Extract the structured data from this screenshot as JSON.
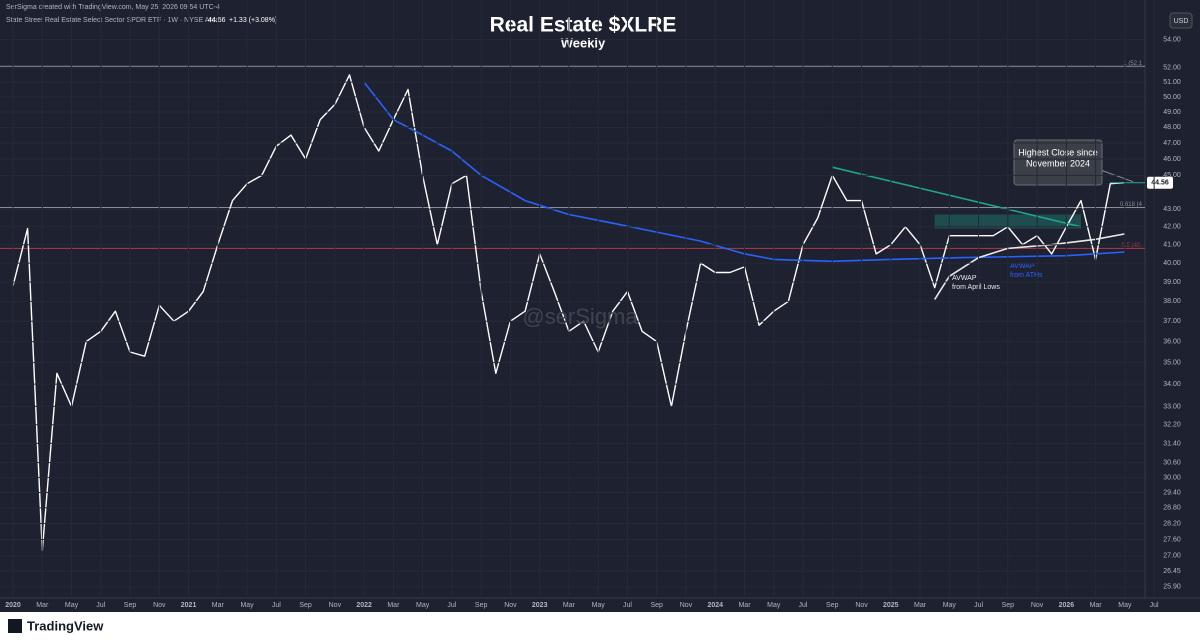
{
  "chart_data": {
    "type": "line",
    "header": {
      "credit": "SerSigma created with TradingView.com, May 25, 2026 09:54 UTC-4",
      "symbol": "State Street Real Estate Select Sector SPDR ETF · 1W · NYSE Arca",
      "change": "+1.33 (+3.08%)"
    },
    "title": "Real Estate $XLRE",
    "subtitle": "Weekly",
    "currency": "USD",
    "watermark": "@serSigma",
    "brand": "TradingView",
    "log_scale": true,
    "grid": true,
    "ylim": [
      25.55,
      54.7
    ],
    "yticks": [
      {
        "value": 54,
        "label": "54.00"
      },
      {
        "value": 52,
        "label": "52.00"
      },
      {
        "value": 51,
        "label": "51.00"
      },
      {
        "value": 50,
        "label": "50.00"
      },
      {
        "value": 49,
        "label": "49.00"
      },
      {
        "value": 48,
        "label": "48.00"
      },
      {
        "value": 47,
        "label": "47.00"
      },
      {
        "value": 46,
        "label": "46.00"
      },
      {
        "value": 45,
        "label": "45.00"
      },
      {
        "value": 43,
        "label": "43.00"
      },
      {
        "value": 42,
        "label": "42.00"
      },
      {
        "value": 41,
        "label": "41.00"
      },
      {
        "value": 40,
        "label": "40.00"
      },
      {
        "value": 39,
        "label": "39.00"
      },
      {
        "value": 38,
        "label": "38.00"
      },
      {
        "value": 37,
        "label": "37.00"
      },
      {
        "value": 36,
        "label": "36.00"
      },
      {
        "value": 35,
        "label": "35.00"
      },
      {
        "value": 34,
        "label": "34.00"
      },
      {
        "value": 33,
        "label": "33.00"
      },
      {
        "value": 32.2,
        "label": "32.20"
      },
      {
        "value": 31.4,
        "label": "31.40"
      },
      {
        "value": 30.6,
        "label": "30.60"
      },
      {
        "value": 30,
        "label": "30.00"
      },
      {
        "value": 29.4,
        "label": "29.40"
      },
      {
        "value": 28.8,
        "label": "28.80"
      },
      {
        "value": 28.2,
        "label": "28.20"
      },
      {
        "value": 27.6,
        "label": "27.60"
      },
      {
        "value": 27,
        "label": "27.00"
      },
      {
        "value": 26.45,
        "label": "26.45"
      },
      {
        "value": 25.9,
        "label": "25.90"
      }
    ],
    "xticks": [
      {
        "value": "2020-01",
        "label": "2020"
      },
      {
        "value": "2020-03",
        "label": "Mar"
      },
      {
        "value": "2020-05",
        "label": "May"
      },
      {
        "value": "2020-07",
        "label": "Jul"
      },
      {
        "value": "2020-09",
        "label": "Sep"
      },
      {
        "value": "2020-11",
        "label": "Nov"
      },
      {
        "value": "2021-01",
        "label": "2021"
      },
      {
        "value": "2021-03",
        "label": "Mar"
      },
      {
        "value": "2021-05",
        "label": "May"
      },
      {
        "value": "2021-07",
        "label": "Jul"
      },
      {
        "value": "2021-09",
        "label": "Sep"
      },
      {
        "value": "2021-11",
        "label": "Nov"
      },
      {
        "value": "2022-01",
        "label": "2022"
      },
      {
        "value": "2022-03",
        "label": "Mar"
      },
      {
        "value": "2022-05",
        "label": "May"
      },
      {
        "value": "2022-07",
        "label": "Jul"
      },
      {
        "value": "2022-09",
        "label": "Sep"
      },
      {
        "value": "2022-11",
        "label": "Nov"
      },
      {
        "value": "2023-01",
        "label": "2023"
      },
      {
        "value": "2023-03",
        "label": "Mar"
      },
      {
        "value": "2023-05",
        "label": "May"
      },
      {
        "value": "2023-07",
        "label": "Jul"
      },
      {
        "value": "2023-09",
        "label": "Sep"
      },
      {
        "value": "2023-11",
        "label": "Nov"
      },
      {
        "value": "2024-01",
        "label": "2024"
      },
      {
        "value": "2024-03",
        "label": "Mar"
      },
      {
        "value": "2024-05",
        "label": "May"
      },
      {
        "value": "2024-07",
        "label": "Jul"
      },
      {
        "value": "2024-09",
        "label": "Sep"
      },
      {
        "value": "2024-11",
        "label": "Nov"
      },
      {
        "value": "2025-01",
        "label": "2025"
      },
      {
        "value": "2025-03",
        "label": "Mar"
      },
      {
        "value": "2025-05",
        "label": "May"
      },
      {
        "value": "2025-07",
        "label": "Jul"
      },
      {
        "value": "2025-09",
        "label": "Sep"
      },
      {
        "value": "2025-11",
        "label": "Nov"
      },
      {
        "value": "2026-01",
        "label": "2026"
      },
      {
        "value": "2026-03",
        "label": "Mar"
      },
      {
        "value": "2026-05",
        "label": "May"
      },
      {
        "value": "2026-07",
        "label": "Jul"
      }
    ],
    "last_price": {
      "value": 44.56,
      "label": "44.56"
    },
    "series": [
      {
        "color": "#ffffff",
        "x": [
          "2020-01",
          "2020-02",
          "2020-03",
          "2020-04",
          "2020-05",
          "2020-06",
          "2020-07",
          "2020-08",
          "2020-09",
          "2020-10",
          "2020-11",
          "2020-12",
          "2021-01",
          "2021-02",
          "2021-03",
          "2021-04",
          "2021-05",
          "2021-06",
          "2021-07",
          "2021-08",
          "2021-09",
          "2021-10",
          "2021-11",
          "2021-12",
          "2022-01",
          "2022-02",
          "2022-03",
          "2022-04",
          "2022-05",
          "2022-06",
          "2022-07",
          "2022-08",
          "2022-09",
          "2022-10",
          "2022-11",
          "2022-12",
          "2023-01",
          "2023-02",
          "2023-03",
          "2023-04",
          "2023-05",
          "2023-06",
          "2023-07",
          "2023-08",
          "2023-09",
          "2023-10",
          "2023-11",
          "2023-12",
          "2024-01",
          "2024-02",
          "2024-03",
          "2024-04",
          "2024-05",
          "2024-06",
          "2024-07",
          "2024-08",
          "2024-09",
          "2024-10",
          "2024-11",
          "2024-12",
          "2025-01",
          "2025-02",
          "2025-03",
          "2025-04",
          "2025-05",
          "2025-06",
          "2025-07",
          "2025-08",
          "2025-09",
          "2025-10",
          "2025-11",
          "2025-12",
          "2026-01",
          "2026-02",
          "2026-03",
          "2026-04",
          "2026-05"
        ],
        "values": [
          38.8,
          41.9,
          27.2,
          34.5,
          33,
          36,
          36.5,
          37.5,
          35.5,
          35.3,
          37.8,
          37,
          37.5,
          38.5,
          41,
          43.5,
          44.5,
          45,
          46.8,
          47.5,
          46,
          48.5,
          49.5,
          51.5,
          48,
          46.5,
          48.5,
          50.5,
          45,
          41,
          44.5,
          45,
          38.5,
          34.5,
          37,
          37.5,
          40.5,
          38.5,
          36.5,
          37,
          35.5,
          37.5,
          38.5,
          36.5,
          36,
          33,
          36.5,
          40,
          39.5,
          39.5,
          39.8,
          36.8,
          37.5,
          38,
          41,
          42.5,
          45,
          43.5,
          43.5,
          40.5,
          41,
          42,
          41,
          38.7,
          41.5,
          41.5,
          41.5,
          41.5,
          42,
          41,
          41.5,
          40.5,
          42,
          43.5,
          40.2,
          44.5,
          44.56
        ]
      },
      {
        "name": "AVWAP from ATHs",
        "color": "#2962ff",
        "x": [
          "2022-01",
          "2022-03",
          "2022-05",
          "2022-07",
          "2022-09",
          "2022-12",
          "2023-03",
          "2023-06",
          "2023-09",
          "2023-12",
          "2024-03",
          "2024-05",
          "2024-09",
          "2025-01",
          "2025-06",
          "2026-01",
          "2026-05"
        ],
        "values": [
          51,
          48.5,
          47.5,
          46.5,
          45,
          43.5,
          42.7,
          42.2,
          41.7,
          41.2,
          40.5,
          40.2,
          40.1,
          40.2,
          40.3,
          40.4,
          40.6
        ]
      },
      {
        "name": "AVWAP from April Lows",
        "color": "#e8e8e8",
        "x": [
          "2025-04",
          "2025-05",
          "2025-07",
          "2025-09",
          "2025-12",
          "2026-03",
          "2026-05"
        ],
        "values": [
          38.1,
          39.3,
          40.3,
          40.8,
          41,
          41.3,
          41.6
        ]
      },
      {
        "color": "#1fa58e",
        "x": [
          "2024-09",
          "2026-02"
        ],
        "values": [
          45.5,
          42
        ]
      }
    ],
    "levels": [
      {
        "label": "1 (52.1",
        "value": 52.1,
        "color": "#8a8d96"
      },
      {
        "label": "0.618 (4",
        "value": 43.1,
        "color": "#8a8d96"
      },
      {
        "label": "0.5 (40.",
        "value": 40.8,
        "color": "#b03a46"
      }
    ],
    "zone": {
      "x": [
        "2025-04",
        "2026-02"
      ],
      "y": [
        41.9,
        42.7
      ]
    },
    "annotation": {
      "lines": [
        "Highest Close since",
        "November 2024"
      ],
      "value": 44.56,
      "x": "2026-04",
      "color": "#22ab94"
    }
  }
}
